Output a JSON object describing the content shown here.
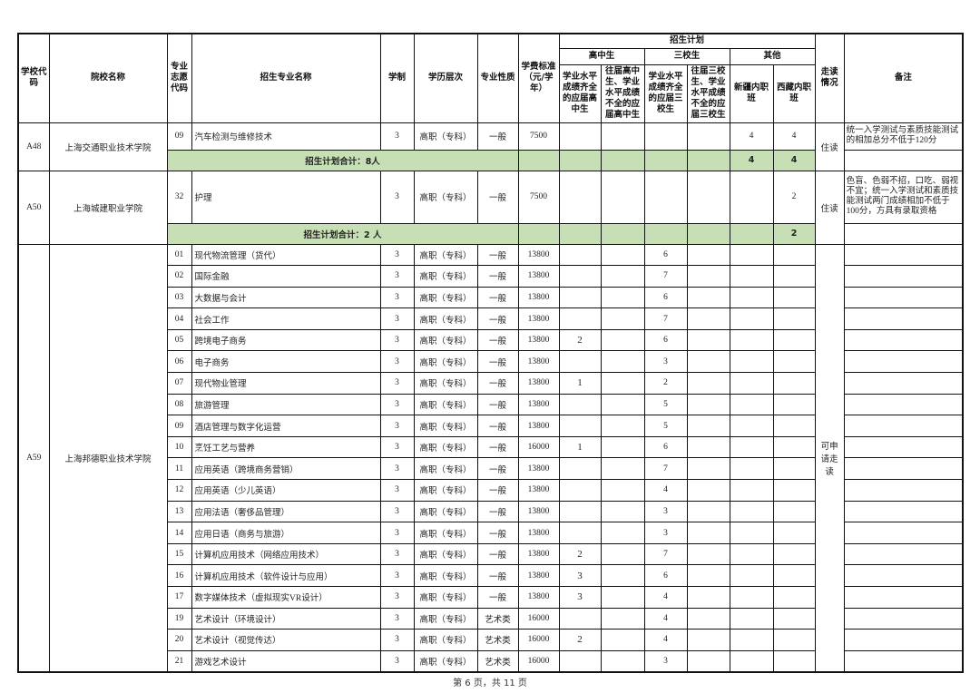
{
  "header": {
    "school_code": "学校代码",
    "school_name": "院校名称",
    "program_code": "专业志愿代码",
    "program_name": "招生专业名称",
    "years": "学制",
    "level": "学历层次",
    "type": "专业性质",
    "fee": "学费标准（元/学年）",
    "plan": "招生计划",
    "high_school": "高中生",
    "three_school": "三校生",
    "other": "其他",
    "hs_full": "学业水平成绩齐全的应届高中生",
    "hs_partial": "往届高中生、学业水平成绩不全的应届高中生",
    "sx_full": "学业水平成绩齐全的应届三校生",
    "sx_partial": "往届三校生、学业水平成绩不全的应届三校生",
    "xinjiang": "新疆内职班",
    "tibet": "西藏内职班",
    "commute": "走读情况",
    "note": "备注"
  },
  "colors": {
    "total_row_bg": "#c6dfb4",
    "border": "#111111"
  },
  "schools": [
    {
      "code": "A48",
      "name": "上海交通职业技术学院",
      "commute": "住读",
      "programs": [
        {
          "code": "09",
          "name": "汽车检测与维修技术",
          "years": "3",
          "level": "高职（专科）",
          "type": "一般",
          "fee": "7500",
          "hs_full": "",
          "hs_partial": "",
          "sx_full": "",
          "sx_partial": "",
          "xinjiang": "4",
          "tibet": "4",
          "note": "统一入学测试与素质技能测试的相加总分不低于120分"
        }
      ],
      "total": {
        "label": "招生计划合计：8人",
        "hs_full": "",
        "hs_partial": "",
        "sx_full": "",
        "sx_partial": "",
        "xinjiang": "4",
        "tibet": "4"
      }
    },
    {
      "code": "A50",
      "name": "上海城建职业学院",
      "commute": "住读",
      "programs": [
        {
          "code": "32",
          "name": "护理",
          "years": "3",
          "level": "高职（专科）",
          "type": "一般",
          "fee": "7500",
          "hs_full": "",
          "hs_partial": "",
          "sx_full": "",
          "sx_partial": "",
          "xinjiang": "",
          "tibet": "2",
          "note": "色盲、色弱不招，口吃、弱视不宜；统一入学测试和素质技能测试两门成绩相加不低于100分，方具有录取资格"
        }
      ],
      "total": {
        "label": "招生计划合计：2 人",
        "hs_full": "",
        "hs_partial": "",
        "sx_full": "",
        "sx_partial": "",
        "xinjiang": "",
        "tibet": "2"
      }
    },
    {
      "code": "A59",
      "name": "上海邦德职业技术学院",
      "commute": "可申请走读",
      "programs": [
        {
          "code": "01",
          "name": "现代物流管理（货代）",
          "years": "3",
          "level": "高职（专科）",
          "type": "一般",
          "fee": "13800",
          "hs_full": "",
          "sx_full": "6"
        },
        {
          "code": "02",
          "name": "国际金融",
          "years": "3",
          "level": "高职（专科）",
          "type": "一般",
          "fee": "13800",
          "hs_full": "",
          "sx_full": "7"
        },
        {
          "code": "03",
          "name": "大数据与会计",
          "years": "3",
          "level": "高职（专科）",
          "type": "一般",
          "fee": "13800",
          "hs_full": "",
          "sx_full": "6"
        },
        {
          "code": "04",
          "name": "社会工作",
          "years": "3",
          "level": "高职（专科）",
          "type": "一般",
          "fee": "13800",
          "hs_full": "",
          "sx_full": "7"
        },
        {
          "code": "05",
          "name": "跨境电子商务",
          "years": "3",
          "level": "高职（专科）",
          "type": "一般",
          "fee": "13800",
          "hs_full": "2",
          "sx_full": "6"
        },
        {
          "code": "06",
          "name": "电子商务",
          "years": "3",
          "level": "高职（专科）",
          "type": "一般",
          "fee": "13800",
          "hs_full": "",
          "sx_full": "3"
        },
        {
          "code": "07",
          "name": "现代物业管理",
          "years": "3",
          "level": "高职（专科）",
          "type": "一般",
          "fee": "13800",
          "hs_full": "1",
          "sx_full": "2"
        },
        {
          "code": "08",
          "name": "旅游管理",
          "years": "3",
          "level": "高职（专科）",
          "type": "一般",
          "fee": "13800",
          "hs_full": "",
          "sx_full": "5"
        },
        {
          "code": "09",
          "name": "酒店管理与数字化运营",
          "years": "3",
          "level": "高职（专科）",
          "type": "一般",
          "fee": "13800",
          "hs_full": "",
          "sx_full": "5"
        },
        {
          "code": "10",
          "name": "烹饪工艺与营养",
          "years": "3",
          "level": "高职（专科）",
          "type": "一般",
          "fee": "16000",
          "hs_full": "1",
          "sx_full": "6"
        },
        {
          "code": "11",
          "name": "应用英语（跨境商务营销）",
          "years": "3",
          "level": "高职（专科）",
          "type": "一般",
          "fee": "13800",
          "hs_full": "",
          "sx_full": "7"
        },
        {
          "code": "12",
          "name": "应用英语（少儿英语）",
          "years": "3",
          "level": "高职（专科）",
          "type": "一般",
          "fee": "13800",
          "hs_full": "",
          "sx_full": "4"
        },
        {
          "code": "13",
          "name": "应用法语（奢侈品管理）",
          "years": "3",
          "level": "高职（专科）",
          "type": "一般",
          "fee": "13800",
          "hs_full": "",
          "sx_full": "3"
        },
        {
          "code": "14",
          "name": "应用日语（商务与旅游）",
          "years": "3",
          "level": "高职（专科）",
          "type": "一般",
          "fee": "13800",
          "hs_full": "",
          "sx_full": "3"
        },
        {
          "code": "15",
          "name": "计算机应用技术（网络应用技术）",
          "years": "3",
          "level": "高职（专科）",
          "type": "一般",
          "fee": "13800",
          "hs_full": "2",
          "sx_full": "7"
        },
        {
          "code": "16",
          "name": "计算机应用技术（软件设计与应用）",
          "years": "3",
          "level": "高职（专科）",
          "type": "一般",
          "fee": "13800",
          "hs_full": "3",
          "sx_full": "6"
        },
        {
          "code": "17",
          "name": "数字媒体技术（虚拟现实VR设计）",
          "years": "3",
          "level": "高职（专科）",
          "type": "一般",
          "fee": "13800",
          "hs_full": "3",
          "sx_full": "4"
        },
        {
          "code": "19",
          "name": "艺术设计（环境设计）",
          "years": "3",
          "level": "高职（专科）",
          "type": "艺术类",
          "fee": "16000",
          "hs_full": "",
          "sx_full": "4"
        },
        {
          "code": "20",
          "name": "艺术设计（视觉传达）",
          "years": "3",
          "level": "高职（专科）",
          "type": "艺术类",
          "fee": "16000",
          "hs_full": "2",
          "sx_full": "4"
        },
        {
          "code": "21",
          "name": "游戏艺术设计",
          "years": "3",
          "level": "高职（专科）",
          "type": "艺术类",
          "fee": "16000",
          "hs_full": "",
          "sx_full": "3"
        }
      ]
    }
  ],
  "footer": {
    "page": "第 6 页，共 11 页"
  }
}
